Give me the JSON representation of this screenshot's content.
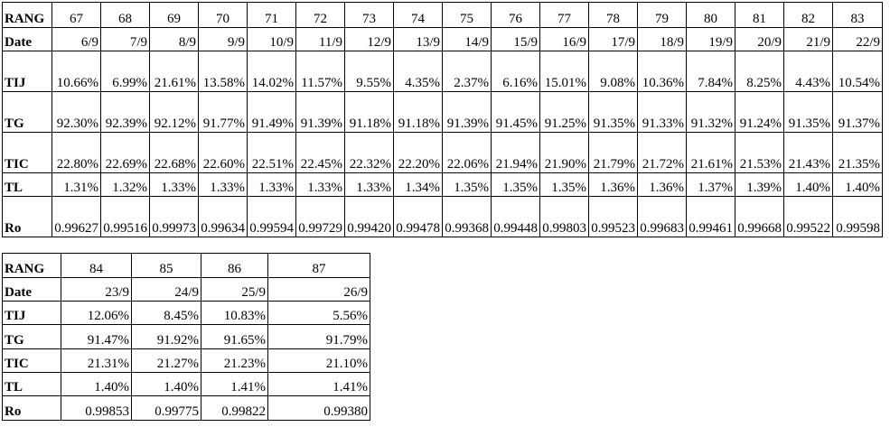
{
  "tables": [
    {
      "rows": [
        [
          "RANG",
          "67",
          "68",
          "69",
          "70",
          "71",
          "72",
          "73",
          "74",
          "75",
          "76",
          "77",
          "78",
          "79",
          "80",
          "81",
          "82",
          "83"
        ],
        [
          "Date",
          "6/9",
          "7/9",
          "8/9",
          "9/9",
          "10/9",
          "11/9",
          "12/9",
          "13/9",
          "14/9",
          "15/9",
          "16/9",
          "17/9",
          "18/9",
          "19/9",
          "20/9",
          "21/9",
          "22/9"
        ],
        [
          "TIJ",
          "10.66%",
          "6.99%",
          "21.61%",
          "13.58%",
          "14.02%",
          "11.57%",
          "9.55%",
          "4.35%",
          "2.37%",
          "6.16%",
          "15.01%",
          "9.08%",
          "10.36%",
          "7.84%",
          "8.25%",
          "4.43%",
          "10.54%"
        ],
        [
          "TG",
          "92.30%",
          "92.39%",
          "92.12%",
          "91.77%",
          "91.49%",
          "91.39%",
          "91.18%",
          "91.18%",
          "91.39%",
          "91.45%",
          "91.25%",
          "91.35%",
          "91.33%",
          "91.32%",
          "91.24%",
          "91.35%",
          "91.37%"
        ],
        [
          "TIC",
          "22.80%",
          "22.69%",
          "22.68%",
          "22.60%",
          "22.51%",
          "22.45%",
          "22.32%",
          "22.20%",
          "22.06%",
          "21.94%",
          "21.90%",
          "21.79%",
          "21.72%",
          "21.61%",
          "21.53%",
          "21.43%",
          "21.35%"
        ],
        [
          "TL",
          "1.31%",
          "1.32%",
          "1.33%",
          "1.33%",
          "1.33%",
          "1.33%",
          "1.33%",
          "1.34%",
          "1.35%",
          "1.35%",
          "1.35%",
          "1.36%",
          "1.36%",
          "1.37%",
          "1.39%",
          "1.40%",
          "1.40%"
        ],
        [
          "Ro",
          "0.99627",
          "0.99516",
          "0.99973",
          "0.99634",
          "0.99594",
          "0.99729",
          "0.99420",
          "0.99478",
          "0.99368",
          "0.99448",
          "0.99803",
          "0.99523",
          "0.99683",
          "0.99461",
          "0.99668",
          "0.99522",
          "0.99598"
        ]
      ]
    },
    {
      "rows": [
        [
          "RANG",
          "84",
          "85",
          "86",
          "87"
        ],
        [
          "Date",
          "23/9",
          "24/9",
          "25/9",
          "26/9"
        ],
        [
          "TIJ",
          "12.06%",
          "8.45%",
          "10.83%",
          "5.56%"
        ],
        [
          "TG",
          "91.47%",
          "91.92%",
          "91.65%",
          "91.79%"
        ],
        [
          "TIC",
          "21.31%",
          "21.27%",
          "21.23%",
          "21.10%"
        ],
        [
          "TL",
          "1.40%",
          "1.40%",
          "1.41%",
          "1.41%"
        ],
        [
          "Ro",
          "0.99853",
          "0.99775",
          "0.99822",
          "0.99380"
        ]
      ]
    }
  ]
}
